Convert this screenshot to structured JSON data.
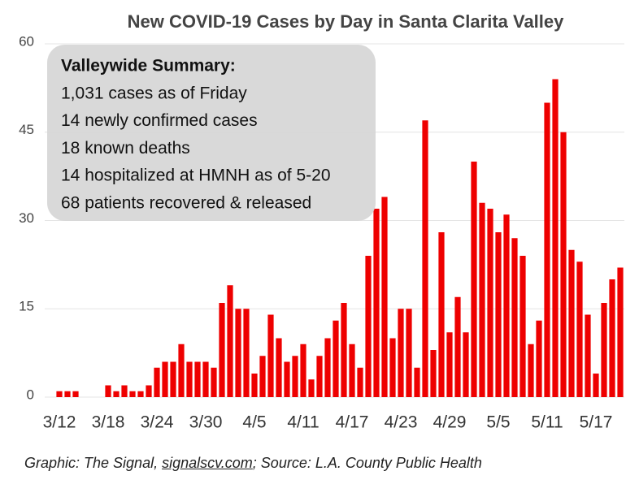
{
  "chart_data": {
    "type": "bar",
    "title": "New COVID-19 Cases by Day in Santa Clarita Valley",
    "categories": [
      "3/12",
      null,
      null,
      null,
      null,
      null,
      "3/18",
      null,
      null,
      null,
      null,
      null,
      "3/24",
      null,
      null,
      null,
      null,
      null,
      "3/30",
      null,
      null,
      null,
      null,
      null,
      "4/5",
      null,
      null,
      null,
      null,
      null,
      "4/11",
      null,
      null,
      null,
      null,
      null,
      "4/17",
      null,
      null,
      null,
      null,
      null,
      "4/23",
      null,
      null,
      null,
      null,
      null,
      "4/29",
      null,
      null,
      null,
      null,
      null,
      "5/5",
      null,
      null,
      null,
      null,
      null,
      "5/11",
      null,
      null,
      null,
      null,
      null,
      "5/17",
      null,
      null,
      null
    ],
    "values": [
      1,
      1,
      1,
      0,
      0,
      0,
      2,
      1,
      2,
      1,
      1,
      2,
      5,
      6,
      6,
      9,
      6,
      6,
      6,
      5,
      16,
      19,
      15,
      15,
      4,
      7,
      14,
      10,
      6,
      7,
      9,
      3,
      7,
      10,
      13,
      16,
      9,
      5,
      24,
      32,
      34,
      10,
      15,
      15,
      5,
      47,
      8,
      28,
      11,
      17,
      11,
      40,
      33,
      32,
      28,
      31,
      27,
      24,
      9,
      13,
      50,
      54,
      45,
      25,
      23,
      14,
      4,
      16,
      20,
      22
    ],
    "color": "#ee0000",
    "ylim": [
      0,
      60
    ],
    "yticks": [
      0,
      15,
      30,
      45,
      60
    ],
    "grid": true,
    "annotation": {
      "title": "Valleywide Summary:",
      "lines": [
        "1,031 cases as of Friday",
        "14 newly confirmed cases",
        "18 known deaths",
        "14 hospitalized at HMNH as of 5-20",
        "68 patients recovered & released"
      ]
    },
    "source": [
      "Graphic: The Signal, ",
      "signalscv.com",
      "; Source: L.A. County Public Health"
    ]
  }
}
